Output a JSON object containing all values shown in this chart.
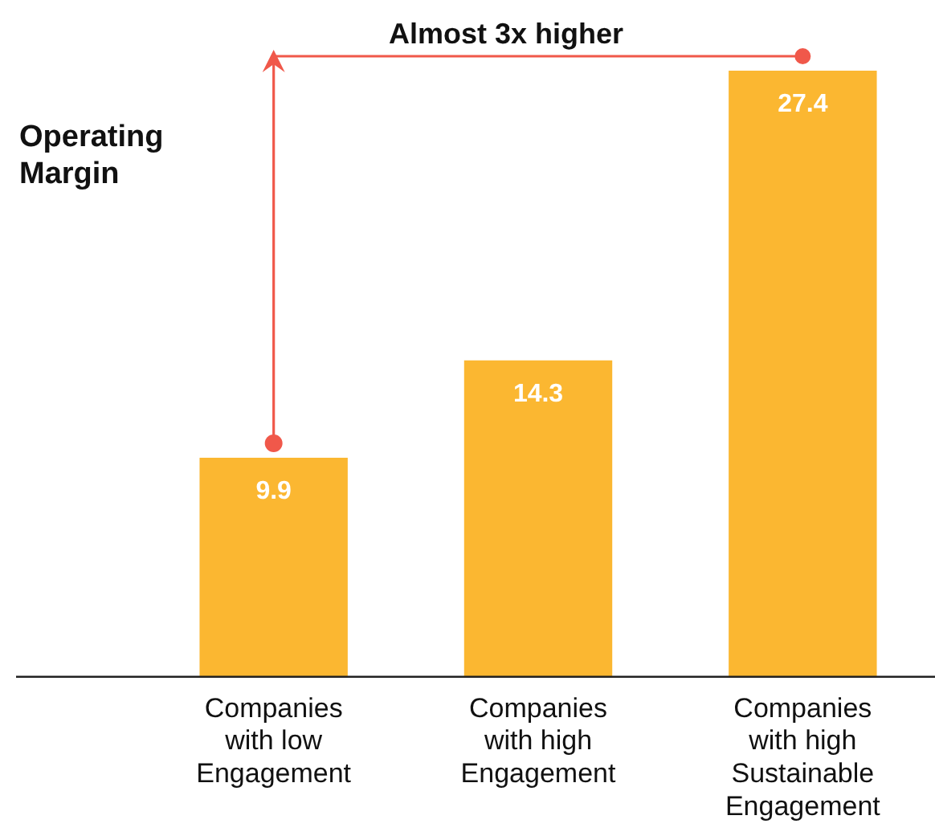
{
  "chart_data": {
    "type": "bar",
    "ylabel": "Operating Margin",
    "categories": [
      "Companies with low Engagement",
      "Companies with high Engagement",
      "Companies with high Sustainable Engagement"
    ],
    "values": [
      9.9,
      14.3,
      27.4
    ],
    "color": "#fbb731",
    "data_labels": true,
    "grid": false,
    "legend": false,
    "annotations": [
      "Almost 3x higher"
    ]
  }
}
